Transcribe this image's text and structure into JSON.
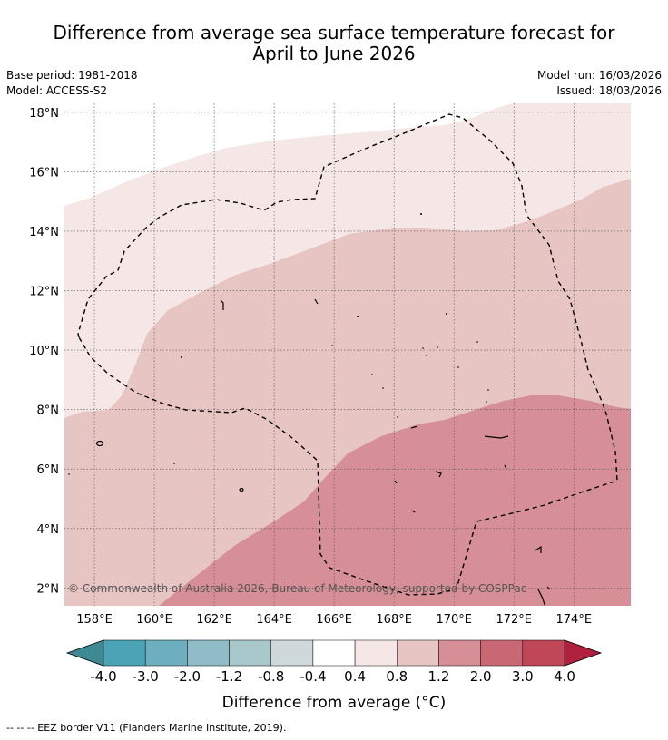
{
  "title_line1": "Difference from average sea surface temperature forecast for",
  "title_line2": "April to June 2026",
  "base_period": "Base period: 1981-2018",
  "model": "Model: ACCESS-S2",
  "model_run": "Model run: 16/03/2026",
  "issued": "Issued: 18/03/2026",
  "copyright": "© Commonwealth of Australia 2026, Bureau of Meteorology, supported by COSPPac",
  "map": {
    "lon_range": [
      157.0,
      175.9
    ],
    "lat_range": [
      1.4,
      18.3
    ],
    "lon_ticks": [
      "158°E",
      "160°E",
      "162°E",
      "164°E",
      "166°E",
      "168°E",
      "170°E",
      "172°E",
      "174°E"
    ],
    "lat_ticks": [
      "18°N",
      "16°N",
      "14°N",
      "12°N",
      "10°N",
      "8°N",
      "6°N",
      "4°N",
      "2°N"
    ],
    "anomaly_bands": [
      {
        "range": "0.4 to 0.8",
        "color": "#f5e7e6"
      },
      {
        "range": "0.8 to 1.2",
        "color": "#e6c5c2"
      },
      {
        "range": "1.2 to 2.0",
        "color": "#d68f96"
      }
    ]
  },
  "colorbar": {
    "title": "Difference from average (°C)",
    "ticks": [
      "-4.0",
      "-3.0",
      "-2.0",
      "-1.2",
      "-0.8",
      "-0.4",
      "0.4",
      "0.8",
      "1.2",
      "2.0",
      "3.0",
      "4.0"
    ],
    "colors": [
      "#4ba4b6",
      "#6eafbf",
      "#8fbcc6",
      "#a9c8cc",
      "#cfd8da",
      "#ffffff",
      "#f5e7e6",
      "#e6c5c2",
      "#d68f96",
      "#c96874",
      "#c04758"
    ],
    "low_color": "#3f8993",
    "high_color": "#b01f3e"
  },
  "footer": "--  --  -- EEZ border V11 (Flanders Marine Institute, 2019)."
}
